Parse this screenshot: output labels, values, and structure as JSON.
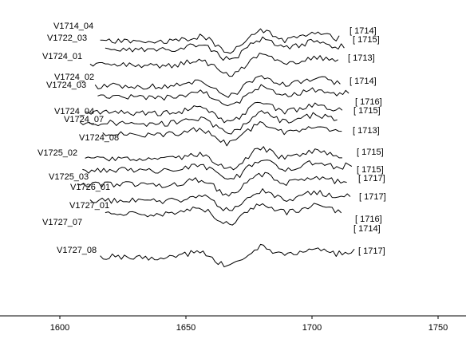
{
  "chart_data": {
    "type": "line",
    "title": "",
    "xlabel": "",
    "ylabel": "",
    "xlim": [
      1585,
      1755
    ],
    "x_ticks": [
      1600,
      1650,
      1700,
      1750
    ],
    "x_tick_labels": [
      "1600",
      "1650",
      "1700",
      "1750"
    ],
    "grid": false,
    "legend": "none",
    "series": [
      {
        "name": "V1714_04",
        "end_label": "[ 1714]",
        "x_start": 1616,
        "x_end": 1711,
        "seed": 11
      },
      {
        "name": "V1722_03",
        "end_label": "[ 1715]",
        "x_start": 1618,
        "x_end": 1713,
        "seed": 23
      },
      {
        "name": "V1724_01",
        "end_label": "[ 1713]",
        "x_start": 1612,
        "x_end": 1711,
        "seed": 37
      },
      {
        "name": "V1724_02",
        "end_label": "[ 1714]",
        "x_start": 1614,
        "x_end": 1712,
        "seed": 41
      },
      {
        "name": "V1724_03",
        "end_label": "[ 1716]",
        "x_start": 1615,
        "x_end": 1715,
        "seed": 53
      },
      {
        "name": "V1724_04",
        "end_label": "[ 1715]",
        "x_start": 1610,
        "x_end": 1713,
        "seed": 67
      },
      {
        "name": "V1724_07",
        "end_label": "[ 1713]",
        "x_start": 1608,
        "x_end": 1711,
        "seed": 71
      },
      {
        "name": "V1724_08",
        "end_label": "[ 1715]",
        "x_start": 1617,
        "x_end": 1713,
        "seed": 83
      },
      {
        "name": "V1725_02",
        "end_label": "[ 1715]",
        "x_start": 1610,
        "x_end": 1713,
        "seed": 97
      },
      {
        "name": "V1725_03",
        "end_label": "[ 1717]",
        "x_start": 1609,
        "x_end": 1717,
        "seed": 101
      },
      {
        "name": "V1726_01",
        "end_label": "[ 1717]",
        "x_start": 1607,
        "x_end": 1714,
        "seed": 113
      },
      {
        "name": "V1727_01",
        "end_label": "[ 1716]",
        "x_start": 1612,
        "x_end": 1716,
        "seed": 127
      },
      {
        "name": "V1727_07",
        "end_label": "[ 1714]",
        "x_start": 1618,
        "x_end": 1712,
        "seed": 131
      },
      {
        "name": "V1727_08",
        "end_label": "[ 1717]",
        "x_start": 1616,
        "x_end": 1717,
        "seed": 139
      }
    ]
  }
}
